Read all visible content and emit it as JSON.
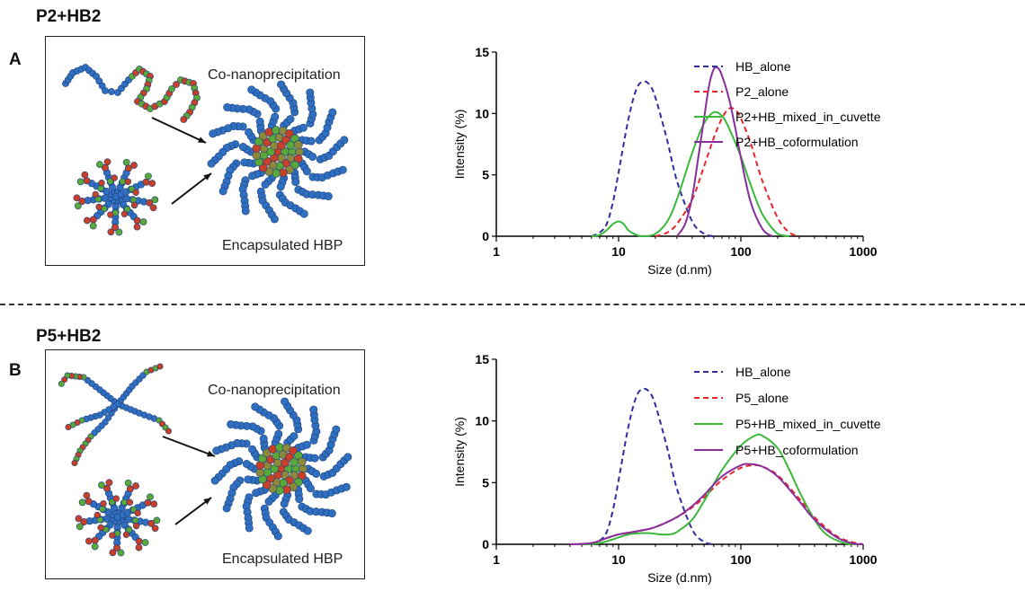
{
  "sections": [
    {
      "title": "P2+HB2",
      "letter": "A",
      "schematic": {
        "top_label": "Co-nanoprecipitation",
        "bottom_label": "Encapsulated HBP"
      }
    },
    {
      "title": "P5+HB2",
      "letter": "B",
      "schematic": {
        "top_label": "Co-nanoprecipitation",
        "bottom_label": "Encapsulated HBP"
      }
    }
  ],
  "colors": {
    "blue": "#2e2e9e",
    "red": "#e8262a",
    "green": "#3ab83a",
    "purple": "#8a2e9e"
  },
  "chart_data": [
    {
      "type": "line",
      "xlabel": "Size (d.nm)",
      "ylabel": "Intensity (%)",
      "xscale": "log",
      "xlim": [
        1,
        1000
      ],
      "ylim": [
        0,
        15
      ],
      "xticks": [
        "1",
        "10",
        "100",
        "1000"
      ],
      "yticks": [
        "0",
        "5",
        "10",
        "15"
      ],
      "legend_position": "top-right",
      "series": [
        {
          "name": "HB_alone",
          "color": "#2e2e9e",
          "dash": true,
          "x": [
            6,
            7,
            8,
            9,
            10,
            12,
            14,
            16,
            18,
            20,
            25,
            30,
            40,
            50,
            60
          ],
          "y": [
            0,
            0.3,
            1.0,
            2.8,
            5.2,
            9.5,
            12.0,
            12.6,
            12.3,
            11.3,
            7.8,
            4.5,
            1.2,
            0.2,
            0
          ]
        },
        {
          "name": "P2_alone",
          "color": "#e8262a",
          "dash": true,
          "x": [
            20,
            25,
            30,
            40,
            50,
            60,
            70,
            80,
            90,
            100,
            120,
            150,
            200,
            250,
            300
          ],
          "y": [
            0,
            0.3,
            1.0,
            3.0,
            5.7,
            8.0,
            9.6,
            10.4,
            10.3,
            9.6,
            7.6,
            4.5,
            1.5,
            0.3,
            0
          ]
        },
        {
          "name": "P2+HB_mixed_in_cuvette",
          "color": "#3ab83a",
          "dash": false,
          "x": [
            6,
            7,
            8,
            9,
            10,
            11,
            12,
            14,
            16,
            20,
            25,
            30,
            40,
            50,
            60,
            70,
            80,
            100,
            120,
            150,
            200,
            250
          ],
          "y": [
            0,
            0.1,
            0.5,
            1.0,
            1.2,
            1.0,
            0.5,
            0.1,
            0,
            0.2,
            1.2,
            3.0,
            6.8,
            9.2,
            10.1,
            9.8,
            8.8,
            6.5,
            4.2,
            1.8,
            0.2,
            0
          ]
        },
        {
          "name": "P2+HB_coformulation",
          "color": "#8a2e9e",
          "dash": false,
          "x": [
            30,
            35,
            40,
            45,
            50,
            55,
            60,
            65,
            70,
            80,
            90,
            100,
            120,
            150,
            180
          ],
          "y": [
            0,
            1.0,
            3.2,
            6.5,
            9.6,
            12.3,
            13.6,
            13.7,
            13.1,
            11.2,
            8.8,
            6.4,
            2.8,
            0.6,
            0
          ]
        }
      ]
    },
    {
      "type": "line",
      "xlabel": "Size (d.nm)",
      "ylabel": "Intensity (%)",
      "xscale": "log",
      "xlim": [
        1,
        1000
      ],
      "ylim": [
        0,
        15
      ],
      "xticks": [
        "1",
        "10",
        "100",
        "1000"
      ],
      "yticks": [
        "0",
        "5",
        "10",
        "15"
      ],
      "legend_position": "top-right",
      "series": [
        {
          "name": "HB_alone",
          "color": "#2e2e9e",
          "dash": true,
          "x": [
            6,
            7,
            8,
            9,
            10,
            12,
            14,
            16,
            18,
            20,
            25,
            30,
            40,
            50,
            60
          ],
          "y": [
            0,
            0.3,
            1.0,
            2.8,
            5.2,
            9.5,
            12.0,
            12.6,
            12.3,
            11.3,
            7.8,
            4.5,
            1.2,
            0.2,
            0
          ]
        },
        {
          "name": "P5_alone",
          "color": "#e8262a",
          "dash": true,
          "x": [
            4,
            6,
            8,
            10,
            15,
            20,
            30,
            40,
            50,
            70,
            100,
            130,
            150,
            200,
            300,
            400,
            600,
            800,
            1000
          ],
          "y": [
            0,
            0.1,
            0.5,
            0.8,
            1.1,
            1.4,
            2.2,
            3.0,
            3.8,
            5.2,
            6.2,
            6.4,
            6.3,
            5.6,
            3.7,
            2.2,
            0.7,
            0.2,
            0
          ]
        },
        {
          "name": "P5+HB_mixed_in_cuvette",
          "color": "#3ab83a",
          "dash": false,
          "x": [
            5,
            7,
            9,
            12,
            15,
            18,
            22,
            26,
            30,
            40,
            50,
            70,
            100,
            130,
            150,
            200,
            250,
            300,
            400,
            500,
            700,
            900
          ],
          "y": [
            0,
            0.1,
            0.4,
            0.8,
            0.9,
            0.9,
            0.8,
            0.8,
            1.0,
            2.0,
            3.5,
            6.0,
            8.0,
            8.8,
            8.8,
            7.8,
            6.0,
            4.3,
            2.0,
            0.8,
            0.1,
            0
          ]
        },
        {
          "name": "P5+HB_coformulation",
          "color": "#8a2e9e",
          "dash": false,
          "x": [
            4,
            6,
            8,
            10,
            15,
            20,
            30,
            40,
            50,
            70,
            100,
            120,
            150,
            200,
            300,
            400,
            600,
            800,
            1000
          ],
          "y": [
            0,
            0.1,
            0.5,
            0.8,
            1.1,
            1.4,
            2.2,
            3.1,
            4.0,
            5.5,
            6.4,
            6.5,
            6.3,
            5.5,
            3.5,
            2.0,
            0.6,
            0.1,
            0
          ]
        }
      ]
    }
  ]
}
